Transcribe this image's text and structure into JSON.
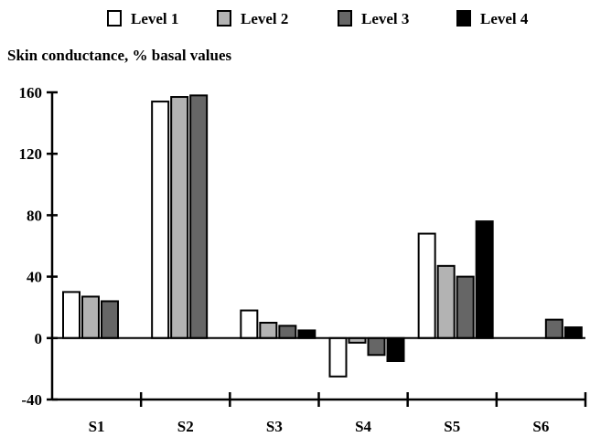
{
  "chart_data": {
    "type": "bar",
    "ylabel": "Skin conductance, % basal values",
    "categories": [
      "S1",
      "S2",
      "S3",
      "S4",
      "S5",
      "S6"
    ],
    "ylim": [
      -40,
      160
    ],
    "yticks": [
      -40,
      0,
      40,
      80,
      120,
      160
    ],
    "grid": false,
    "legend_position": "top",
    "series": [
      {
        "name": "Level 1",
        "color": "#ffffff",
        "values": [
          30,
          154,
          18,
          -25,
          68,
          null
        ]
      },
      {
        "name": "Level 2",
        "color": "#b3b3b3",
        "values": [
          27,
          157,
          10,
          -3,
          47,
          null
        ]
      },
      {
        "name": "Level 3",
        "color": "#666666",
        "values": [
          24,
          158,
          8,
          -11,
          40,
          12
        ]
      },
      {
        "name": "Level 4",
        "color": "#000000",
        "values": [
          null,
          null,
          5,
          -15,
          76,
          7
        ]
      }
    ]
  }
}
